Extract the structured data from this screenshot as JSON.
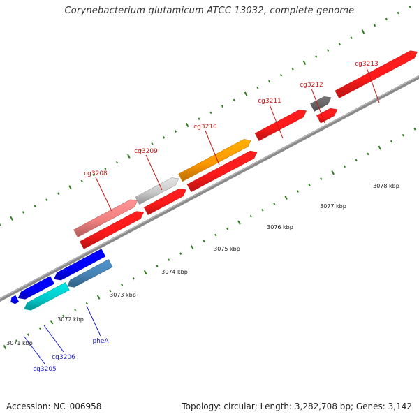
{
  "title": "Corynebacterium glutamicum ATCC 13032, complete genome",
  "footer": {
    "accession": "Accession: NC_006958",
    "stats": "Topology: circular; Length: 3,282,708 bp; Genes: 3,142"
  },
  "colors": {
    "backbone": "#8a8a8a",
    "tick": "#2e7d1e",
    "forward_label": "#cc1111",
    "reverse_label": "#1a1acc"
  },
  "scale": {
    "unit": "kbp",
    "labels": [
      "3071 kbp",
      "3072 kbp",
      "3073 kbp",
      "3074 kbp",
      "3075 kbp",
      "3076 kbp",
      "3077 kbp",
      "3078 kbp"
    ]
  },
  "forward_genes": [
    {
      "label": "cg3208",
      "color": "#f08080"
    },
    {
      "label": "cg3209",
      "color": "#c8c8c8"
    },
    {
      "label": "cg3210",
      "color": "#ff9900"
    },
    {
      "label": "cg3211",
      "color": "#ff1a1a"
    },
    {
      "label": "cg3212",
      "color": "#666666"
    },
    {
      "label": "cg3213",
      "color": "#ff1a1a"
    }
  ],
  "forward_unlabeled_colors": [
    "#ff1a1a"
  ],
  "reverse_genes": [
    {
      "label": "cg3205",
      "color": "#0000ff"
    },
    {
      "label": "cg3206",
      "color": "#00cccc"
    },
    {
      "label": "pheA",
      "color": "#4682b4"
    }
  ],
  "reverse_unlabeled_colors": [
    "#0000ff"
  ]
}
